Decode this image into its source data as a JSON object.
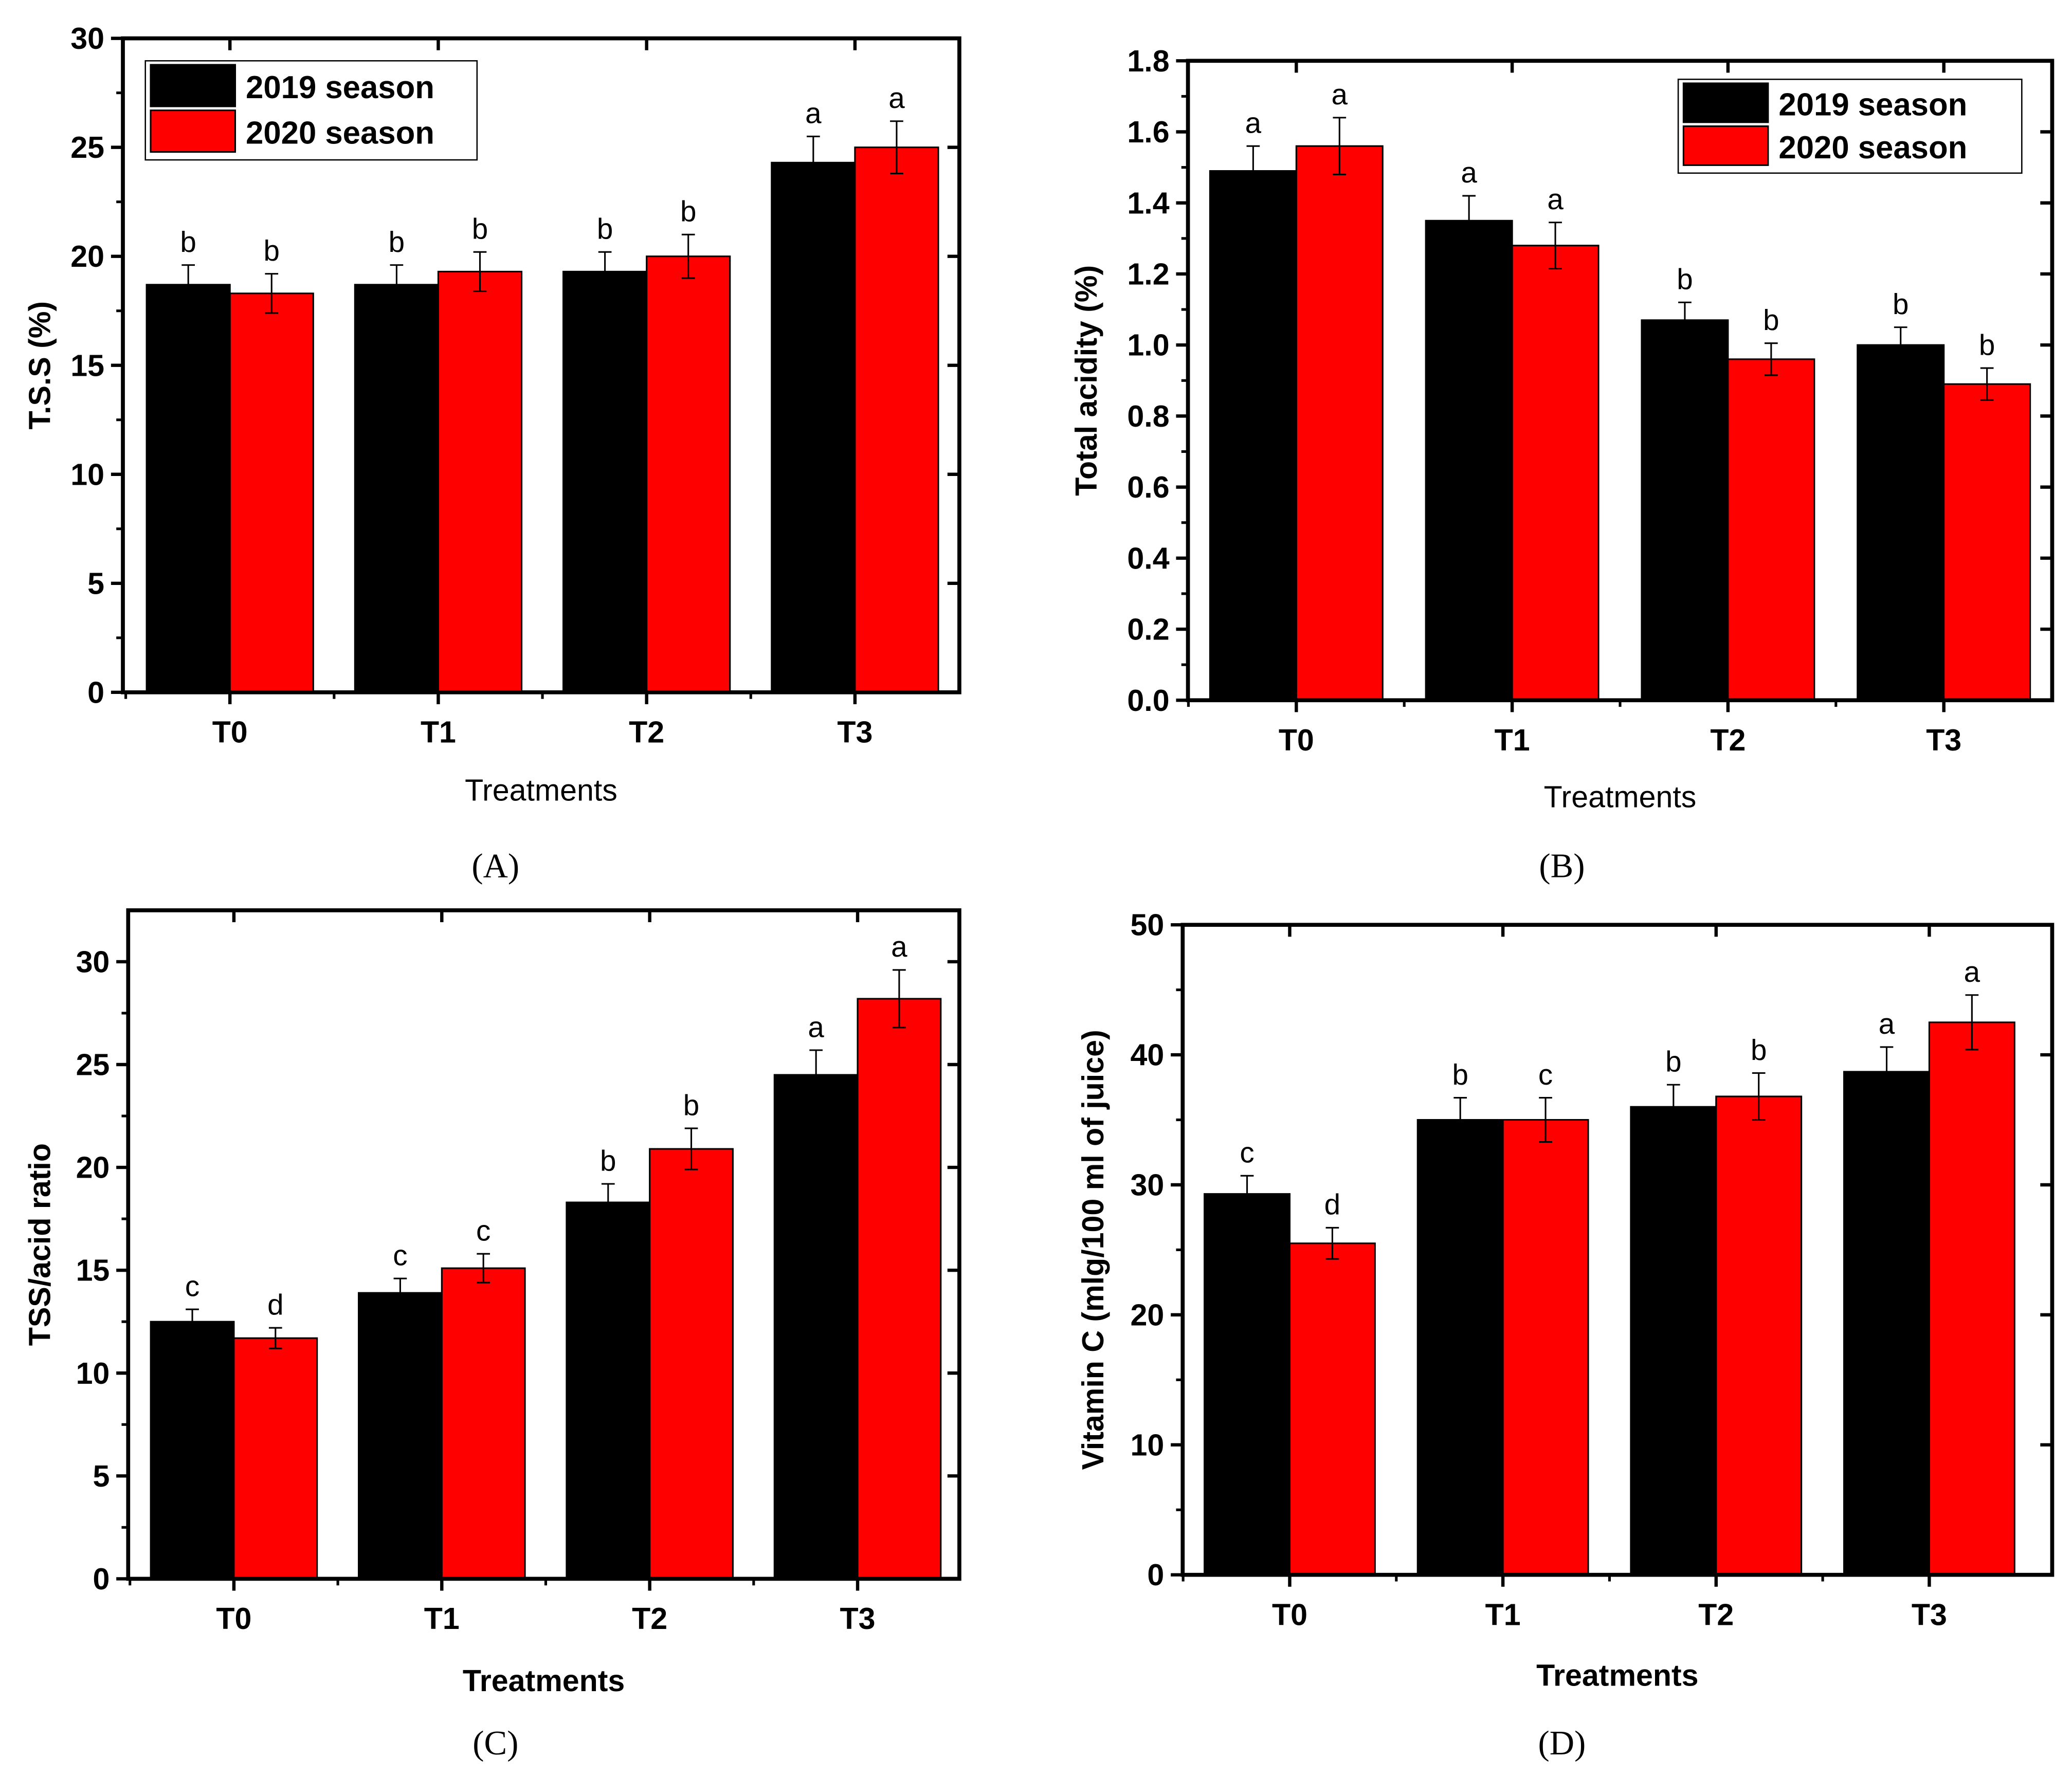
{
  "colors": {
    "s2019": "#000000",
    "s2020": "#ff0000"
  },
  "chart_data": [
    {
      "type": "bar",
      "caption_letter": "A",
      "title": "",
      "categories": [
        "T0",
        "T1",
        "T2",
        "T3"
      ],
      "xlabel": "Treatments",
      "ylabel": "T.S.S (%)",
      "ylim": [
        0,
        30
      ],
      "yticks": [
        "0",
        "5",
        "10",
        "15",
        "20",
        "25",
        "30"
      ],
      "ytick_values": [
        0,
        5,
        10,
        15,
        20,
        25,
        30
      ],
      "legend": {
        "position": "top-left",
        "entries": [
          "2019 season",
          "2020 season"
        ]
      },
      "series": [
        {
          "name": "2019 season",
          "values": [
            18.7,
            18.7,
            19.3,
            24.3
          ],
          "errors": [
            0.9,
            0.9,
            0.9,
            1.2
          ],
          "letters": [
            "b",
            "b",
            "b",
            "a"
          ]
        },
        {
          "name": "2020 season",
          "values": [
            18.3,
            19.3,
            20.0,
            25.0
          ],
          "errors": [
            0.9,
            0.9,
            1.0,
            1.2
          ],
          "letters": [
            "b",
            "b",
            "b",
            "a"
          ]
        }
      ]
    },
    {
      "type": "bar",
      "caption_letter": "B",
      "title": "",
      "categories": [
        "T0",
        "T1",
        "T2",
        "T3"
      ],
      "xlabel": "Treatments",
      "ylabel": "Total acidity (%)",
      "ylim": [
        0,
        1.8
      ],
      "yticks": [
        "0.0",
        "0.2",
        "0.4",
        "0.6",
        "0.8",
        "1.0",
        "1.2",
        "1.4",
        "1.6",
        "1.8"
      ],
      "ytick_values": [
        0,
        0.2,
        0.4,
        0.6,
        0.8,
        1.0,
        1.2,
        1.4,
        1.6,
        1.8
      ],
      "legend": {
        "position": "top-right",
        "entries": [
          "2019 season",
          "2020 season"
        ]
      },
      "series": [
        {
          "name": "2019 season",
          "values": [
            1.49,
            1.35,
            1.07,
            1.0
          ],
          "errors": [
            0.07,
            0.07,
            0.05,
            0.05
          ],
          "letters": [
            "a",
            "a",
            "b",
            "b"
          ]
        },
        {
          "name": "2020 season",
          "values": [
            1.56,
            1.28,
            0.96,
            0.89
          ],
          "errors": [
            0.08,
            0.065,
            0.045,
            0.045
          ],
          "letters": [
            "a",
            "a",
            "b",
            "b"
          ]
        }
      ]
    },
    {
      "type": "bar",
      "caption_letter": "C",
      "title": "",
      "categories": [
        "T0",
        "T1",
        "T2",
        "T3"
      ],
      "xlabel": "Treatments",
      "ylabel": "TSS/acid ratio",
      "ylim": [
        0,
        32.5
      ],
      "yticks": [
        "0",
        "5",
        "10",
        "15",
        "20",
        "25",
        "30"
      ],
      "ytick_values": [
        0,
        5,
        10,
        15,
        20,
        25,
        30
      ],
      "series": [
        {
          "name": "2019 season",
          "values": [
            12.5,
            13.9,
            18.3,
            24.5
          ],
          "errors": [
            0.6,
            0.7,
            0.9,
            1.2
          ],
          "letters": [
            "c",
            "c",
            "b",
            "a"
          ]
        },
        {
          "name": "2020 season",
          "values": [
            11.7,
            15.1,
            20.9,
            28.2
          ],
          "errors": [
            0.5,
            0.7,
            1.0,
            1.4
          ],
          "letters": [
            "d",
            "c",
            "b",
            "a"
          ]
        }
      ]
    },
    {
      "type": "bar",
      "caption_letter": "D",
      "title": "",
      "categories": [
        "T0",
        "T1",
        "T2",
        "T3"
      ],
      "xlabel": "Treatments",
      "ylabel": "Vitamin C (mlg/100 ml of juice)",
      "ylim": [
        0,
        50
      ],
      "yticks": [
        "0",
        "10",
        "20",
        "30",
        "40",
        "50"
      ],
      "ytick_values": [
        0,
        10,
        20,
        30,
        40,
        50
      ],
      "series": [
        {
          "name": "2019 season",
          "values": [
            29.3,
            35.0,
            36.0,
            38.7
          ],
          "errors": [
            1.4,
            1.7,
            1.7,
            1.9
          ],
          "letters": [
            "c",
            "b",
            "b",
            "a"
          ]
        },
        {
          "name": "2020 season",
          "values": [
            25.5,
            35.0,
            36.8,
            42.5
          ],
          "errors": [
            1.2,
            1.7,
            1.8,
            2.1
          ],
          "letters": [
            "d",
            "c",
            "b",
            "a"
          ]
        }
      ]
    }
  ],
  "captions": [
    "(A)",
    "(B)",
    "(C)",
    "(D)"
  ]
}
